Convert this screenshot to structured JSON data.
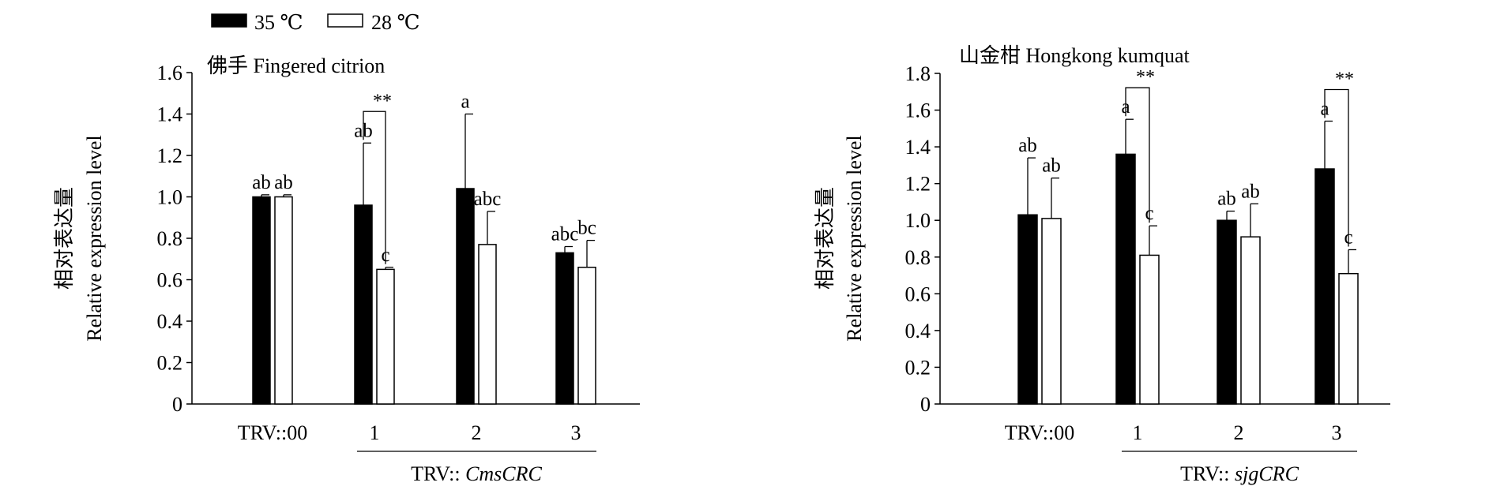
{
  "legend": [
    {
      "label": "35 ℃",
      "color": "#000000"
    },
    {
      "label": "28 ℃",
      "color": "#ffffff"
    }
  ],
  "chart_data": [
    {
      "type": "bar",
      "title": "佛手 Fingered citrion",
      "ylabel_cn": "相对表达量",
      "ylabel": "Relative expression level",
      "ylim": [
        0,
        1.6
      ],
      "yticks": [
        "0",
        "0.2",
        "0.4",
        "0.6",
        "0.8",
        "1.0",
        "1.2",
        "1.4",
        "1.6"
      ],
      "categories": [
        "TRV::00",
        "1",
        "2",
        "3"
      ],
      "group_label_prefix": "TRV:: ",
      "group_label_gene": "CmsCRC",
      "series": [
        {
          "name": "35 ℃",
          "values": [
            1.0,
            0.96,
            1.04,
            0.73
          ],
          "errors": [
            0.01,
            0.3,
            0.36,
            0.03
          ],
          "letters": [
            "ab",
            "ab",
            "a",
            "abc"
          ]
        },
        {
          "name": "28 ℃",
          "values": [
            1.0,
            0.65,
            0.77,
            0.66
          ],
          "errors": [
            0.01,
            0.01,
            0.16,
            0.13
          ],
          "letters": [
            "ab",
            "c",
            "abc",
            "bc"
          ]
        }
      ],
      "significance": [
        {
          "category": "1",
          "label": "**"
        }
      ]
    },
    {
      "type": "bar",
      "title": "山金柑 Hongkong kumquat",
      "ylabel_cn": "相对表达量",
      "ylabel": "Relative expression level",
      "ylim": [
        0,
        1.8
      ],
      "yticks": [
        "0",
        "0.2",
        "0.4",
        "0.6",
        "0.8",
        "1.0",
        "1.2",
        "1.4",
        "1.6",
        "1.8"
      ],
      "categories": [
        "TRV::00",
        "1",
        "2",
        "3"
      ],
      "group_label_prefix": "TRV:: ",
      "group_label_gene": "sjgCRC",
      "series": [
        {
          "name": "35 ℃",
          "values": [
            1.03,
            1.36,
            1.0,
            1.28
          ],
          "errors": [
            0.31,
            0.19,
            0.05,
            0.26
          ],
          "letters": [
            "ab",
            "a",
            "ab",
            "a"
          ]
        },
        {
          "name": "28 ℃",
          "values": [
            1.01,
            0.81,
            0.91,
            0.71
          ],
          "errors": [
            0.22,
            0.16,
            0.18,
            0.13
          ],
          "letters": [
            "ab",
            "c",
            "ab",
            "c"
          ]
        }
      ],
      "significance": [
        {
          "category": "1",
          "label": "**"
        },
        {
          "category": "3",
          "label": "**"
        }
      ]
    }
  ]
}
